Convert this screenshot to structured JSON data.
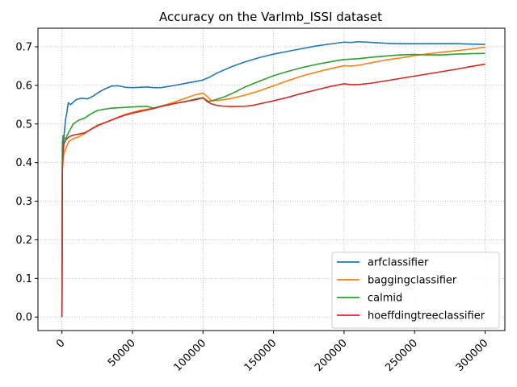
{
  "chart_data": {
    "type": "line",
    "title": "Accuracy on the VarImb_ISSI dataset",
    "xlabel": "",
    "ylabel": "",
    "xlim": [
      -17000,
      314000
    ],
    "ylim": [
      -0.035,
      0.748
    ],
    "x_ticks": [
      0,
      50000,
      100000,
      150000,
      200000,
      250000,
      300000
    ],
    "y_ticks": [
      0.0,
      0.1,
      0.2,
      0.3,
      0.4,
      0.5,
      0.6,
      0.7
    ],
    "x_tick_labels": [
      "0",
      "50000",
      "100000",
      "150000",
      "200000",
      "250000",
      "300000"
    ],
    "y_tick_labels": [
      "0.0",
      "0.1",
      "0.2",
      "0.3",
      "0.4",
      "0.5",
      "0.6",
      "0.7"
    ],
    "x_tick_rotation": -45,
    "grid": true,
    "grid_style": "dotted",
    "legend_position": "lower-right",
    "series": [
      {
        "name": "arfclassifier",
        "color": "#1f77b4",
        "x": [
          0,
          300,
          800,
          1500,
          2500,
          3500,
          4500,
          6000,
          8000,
          10000,
          14000,
          18000,
          22000,
          26000,
          30000,
          35000,
          40000,
          45000,
          50000,
          55000,
          60000,
          65000,
          70000,
          75000,
          80000,
          90000,
          95000,
          100000,
          105000,
          110000,
          120000,
          130000,
          140000,
          150000,
          160000,
          170000,
          180000,
          190000,
          200000,
          205000,
          210000,
          220000,
          230000,
          240000,
          250000,
          260000,
          270000,
          280000,
          290000,
          300000
        ],
        "values": [
          0.0,
          0.4,
          0.44,
          0.47,
          0.51,
          0.53,
          0.555,
          0.55,
          0.556,
          0.563,
          0.567,
          0.565,
          0.572,
          0.582,
          0.59,
          0.598,
          0.599,
          0.595,
          0.594,
          0.595,
          0.596,
          0.594,
          0.594,
          0.597,
          0.6,
          0.607,
          0.61,
          0.614,
          0.622,
          0.632,
          0.648,
          0.661,
          0.672,
          0.681,
          0.688,
          0.695,
          0.702,
          0.707,
          0.712,
          0.711,
          0.713,
          0.711,
          0.709,
          0.708,
          0.708,
          0.708,
          0.708,
          0.708,
          0.707,
          0.706
        ]
      },
      {
        "name": "baggingclassifier",
        "color": "#ff7f0e",
        "x": [
          0,
          300,
          800,
          1500,
          3000,
          5000,
          8000,
          12000,
          16000,
          20000,
          25000,
          30000,
          35000,
          40000,
          45000,
          50000,
          55000,
          60000,
          65000,
          70000,
          80000,
          90000,
          95000,
          100000,
          103000,
          106000,
          110000,
          115000,
          120000,
          130000,
          140000,
          150000,
          160000,
          170000,
          180000,
          190000,
          200000,
          205000,
          210000,
          220000,
          230000,
          240000,
          250000,
          260000,
          270000,
          280000,
          290000,
          300000
        ],
        "values": [
          0.0,
          0.38,
          0.41,
          0.425,
          0.44,
          0.455,
          0.462,
          0.467,
          0.475,
          0.485,
          0.497,
          0.503,
          0.51,
          0.518,
          0.525,
          0.53,
          0.535,
          0.538,
          0.541,
          0.546,
          0.557,
          0.57,
          0.576,
          0.58,
          0.571,
          0.56,
          0.561,
          0.563,
          0.566,
          0.575,
          0.586,
          0.599,
          0.612,
          0.624,
          0.634,
          0.643,
          0.651,
          0.65,
          0.652,
          0.659,
          0.666,
          0.671,
          0.677,
          0.682,
          0.686,
          0.69,
          0.694,
          0.699
        ]
      },
      {
        "name": "calmid",
        "color": "#2ca02c",
        "x": [
          0,
          300,
          800,
          1500,
          3000,
          5000,
          8000,
          12000,
          16000,
          20000,
          25000,
          30000,
          35000,
          40000,
          45000,
          50000,
          55000,
          60000,
          65000,
          70000,
          80000,
          90000,
          95000,
          100000,
          104000,
          108000,
          115000,
          120000,
          130000,
          140000,
          150000,
          160000,
          170000,
          180000,
          190000,
          200000,
          205000,
          210000,
          220000,
          230000,
          240000,
          250000,
          260000,
          270000,
          280000,
          290000,
          300000
        ],
        "values": [
          0.0,
          0.45,
          0.47,
          0.46,
          0.465,
          0.48,
          0.5,
          0.51,
          0.515,
          0.525,
          0.535,
          0.538,
          0.541,
          0.542,
          0.543,
          0.544,
          0.545,
          0.546,
          0.541,
          0.546,
          0.553,
          0.56,
          0.565,
          0.568,
          0.558,
          0.562,
          0.57,
          0.578,
          0.596,
          0.611,
          0.625,
          0.636,
          0.646,
          0.654,
          0.661,
          0.667,
          0.668,
          0.669,
          0.673,
          0.676,
          0.679,
          0.68,
          0.679,
          0.679,
          0.681,
          0.682,
          0.683
        ]
      },
      {
        "name": "hoeffdingtreeclassifier",
        "color": "#d62728",
        "x": [
          0,
          300,
          800,
          1500,
          3000,
          5000,
          8000,
          12000,
          16000,
          20000,
          25000,
          30000,
          35000,
          40000,
          45000,
          50000,
          55000,
          60000,
          65000,
          70000,
          80000,
          90000,
          95000,
          100000,
          103000,
          106000,
          110000,
          115000,
          120000,
          130000,
          135000,
          140000,
          150000,
          160000,
          170000,
          180000,
          190000,
          200000,
          205000,
          210000,
          220000,
          230000,
          240000,
          250000,
          260000,
          270000,
          280000,
          290000,
          300000
        ],
        "values": [
          0.0,
          0.38,
          0.43,
          0.45,
          0.46,
          0.467,
          0.471,
          0.474,
          0.477,
          0.485,
          0.495,
          0.503,
          0.51,
          0.517,
          0.523,
          0.528,
          0.532,
          0.536,
          0.54,
          0.545,
          0.553,
          0.56,
          0.563,
          0.568,
          0.558,
          0.552,
          0.548,
          0.546,
          0.545,
          0.546,
          0.548,
          0.552,
          0.56,
          0.569,
          0.579,
          0.588,
          0.597,
          0.604,
          0.602,
          0.602,
          0.606,
          0.612,
          0.618,
          0.624,
          0.63,
          0.636,
          0.642,
          0.649,
          0.655
        ]
      }
    ]
  }
}
